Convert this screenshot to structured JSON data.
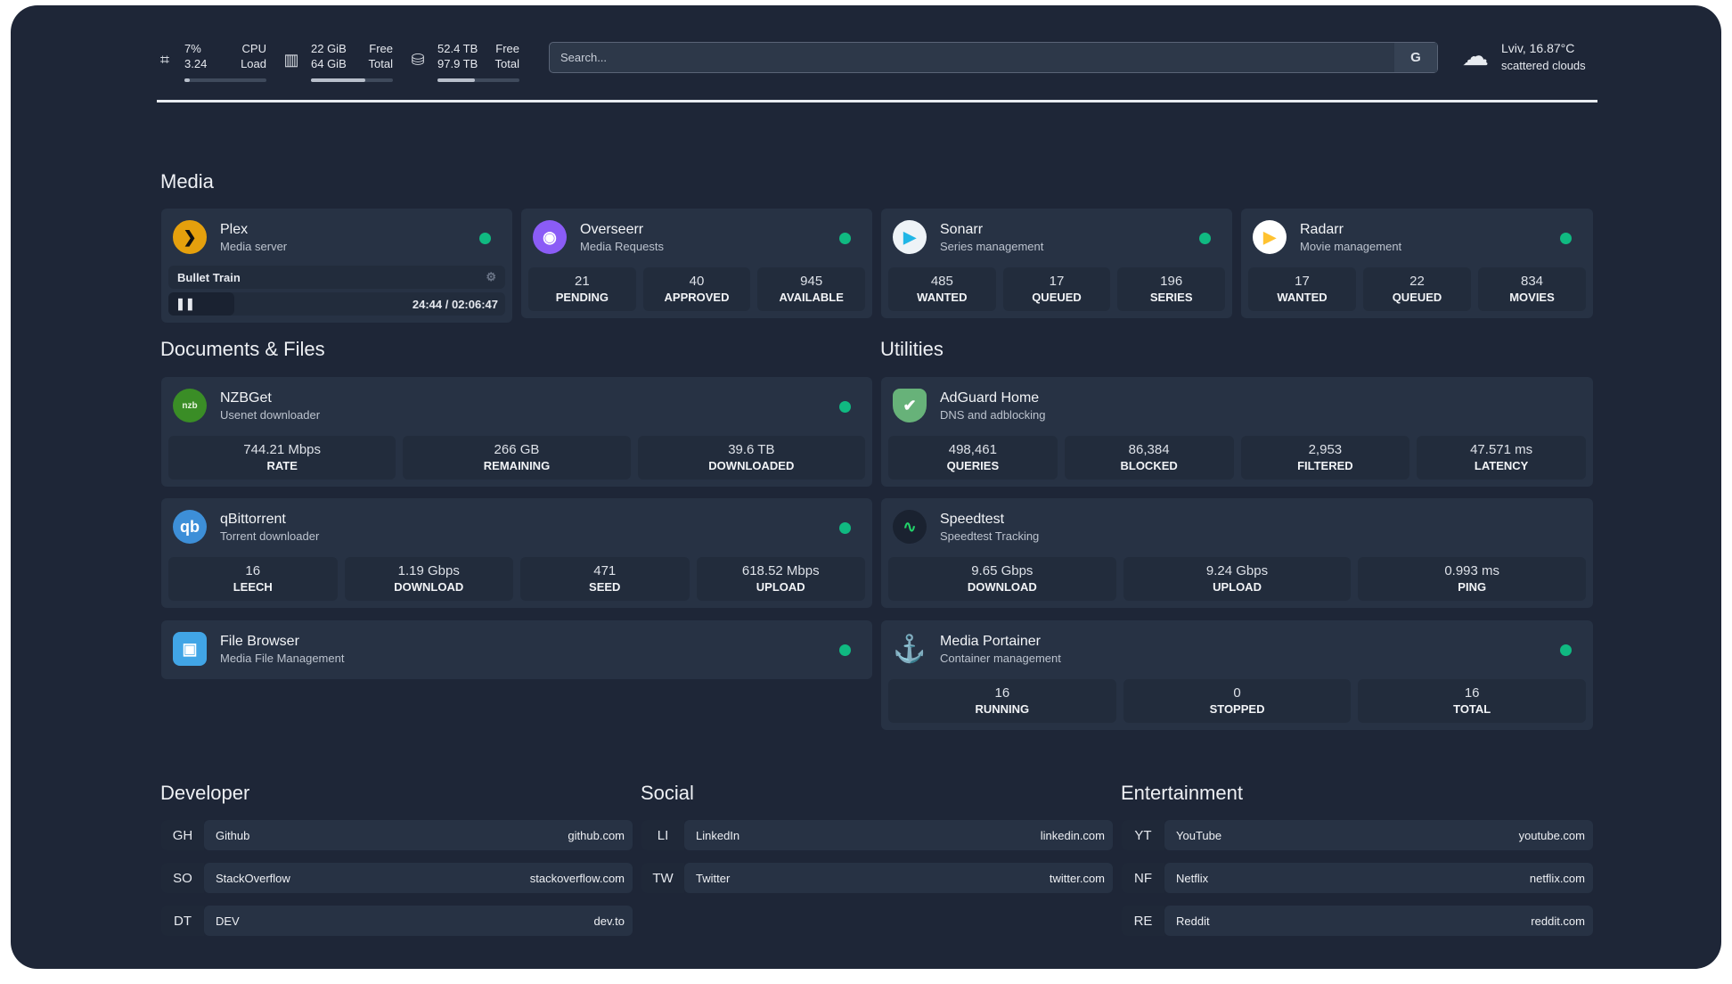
{
  "topbar": {
    "cpu": {
      "icon": "cpu-icon",
      "v1": "7%",
      "v2": "3.24",
      "l1": "CPU",
      "l2": "Load",
      "fill": 7
    },
    "memory": {
      "icon": "memory-icon",
      "v1": "22 GiB",
      "v2": "64 GiB",
      "l1": "Free",
      "l2": "Total",
      "fill": 66
    },
    "disk": {
      "icon": "disk-icon",
      "v1": "52.4 TB",
      "v2": "97.9 TB",
      "l1": "Free",
      "l2": "Total",
      "fill": 46
    },
    "search": {
      "placeholder": "Search...",
      "button": "G"
    },
    "weather": {
      "icon": "cloud-icon",
      "location": "Lviv, 16.87°C",
      "desc": "scattered clouds"
    }
  },
  "colors": {
    "background": "#1e2637",
    "card": "#273244",
    "stat": "#222c3c",
    "status": "#10b981"
  },
  "sections": {
    "media": "Media",
    "docs": "Documents & Files",
    "utilities": "Utilities",
    "developer": "Developer",
    "social": "Social",
    "entertainment": "Entertainment"
  },
  "cards": [
    {
      "id": "plex",
      "title": "Plex",
      "sub": "Media server",
      "icon": "plex-icon",
      "status": true,
      "now_playing": {
        "title": "Bullet Train",
        "time": "24:44 / 02:06:47",
        "progress": 19.5,
        "icon": "pause-icon"
      }
    },
    {
      "id": "overseerr",
      "title": "Overseerr",
      "sub": "Media Requests",
      "icon": "overseerr-icon",
      "status": true,
      "stats": [
        [
          "21",
          "PENDING"
        ],
        [
          "40",
          "APPROVED"
        ],
        [
          "945",
          "AVAILABLE"
        ]
      ]
    },
    {
      "id": "sonarr",
      "title": "Sonarr",
      "sub": "Series management",
      "icon": "sonarr-icon",
      "status": true,
      "stats": [
        [
          "485",
          "WANTED"
        ],
        [
          "17",
          "QUEUED"
        ],
        [
          "196",
          "SERIES"
        ]
      ]
    },
    {
      "id": "radarr",
      "title": "Radarr",
      "sub": "Movie management",
      "icon": "radarr-icon",
      "status": true,
      "stats": [
        [
          "17",
          "WANTED"
        ],
        [
          "22",
          "QUEUED"
        ],
        [
          "834",
          "MOVIES"
        ]
      ]
    },
    {
      "id": "nzbget",
      "title": "NZBGet",
      "sub": "Usenet downloader",
      "icon": "nzbget-icon",
      "status": true,
      "stats": [
        [
          "744.21 Mbps",
          "RATE"
        ],
        [
          "266 GB",
          "REMAINING"
        ],
        [
          "39.6 TB",
          "DOWNLOADED"
        ]
      ]
    },
    {
      "id": "qbittorrent",
      "title": "qBittorrent",
      "sub": "Torrent downloader",
      "icon": "qbittorrent-icon",
      "status": true,
      "stats": [
        [
          "16",
          "LEECH"
        ],
        [
          "1.19 Gbps",
          "DOWNLOAD"
        ],
        [
          "471",
          "SEED"
        ],
        [
          "618.52 Mbps",
          "UPLOAD"
        ]
      ]
    },
    {
      "id": "filebrowser",
      "title": "File Browser",
      "sub": "Media File Management",
      "icon": "file-browser-icon",
      "status": true
    },
    {
      "id": "adguard",
      "title": "AdGuard Home",
      "sub": "DNS and adblocking",
      "icon": "adguard-icon",
      "status": false,
      "stats": [
        [
          "498,461",
          "QUERIES"
        ],
        [
          "86,384",
          "BLOCKED"
        ],
        [
          "2,953",
          "FILTERED"
        ],
        [
          "47.571 ms",
          "LATENCY"
        ]
      ]
    },
    {
      "id": "speedtest",
      "title": "Speedtest",
      "sub": "Speedtest Tracking",
      "icon": "speedtest-icon",
      "status": false,
      "stats": [
        [
          "9.65 Gbps",
          "DOWNLOAD"
        ],
        [
          "9.24 Gbps",
          "UPLOAD"
        ],
        [
          "0.993 ms",
          "PING"
        ]
      ]
    },
    {
      "id": "portainer",
      "title": "Media Portainer",
      "sub": "Container management",
      "icon": "portainer-icon",
      "status": true,
      "stats": [
        [
          "16",
          "RUNNING"
        ],
        [
          "0",
          "STOPPED"
        ],
        [
          "16",
          "TOTAL"
        ]
      ]
    }
  ],
  "bookmarks": [
    [
      {
        "abbr": "GH",
        "name": "Github",
        "url": "github.com"
      },
      {
        "abbr": "SO",
        "name": "StackOverflow",
        "url": "stackoverflow.com"
      },
      {
        "abbr": "DT",
        "name": "DEV",
        "url": "dev.to"
      }
    ],
    [
      {
        "abbr": "LI",
        "name": "LinkedIn",
        "url": "linkedin.com"
      },
      {
        "abbr": "TW",
        "name": "Twitter",
        "url": "twitter.com"
      }
    ],
    [
      {
        "abbr": "YT",
        "name": "YouTube",
        "url": "youtube.com"
      },
      {
        "abbr": "NF",
        "name": "Netflix",
        "url": "netflix.com"
      },
      {
        "abbr": "RE",
        "name": "Reddit",
        "url": "reddit.com"
      }
    ]
  ]
}
